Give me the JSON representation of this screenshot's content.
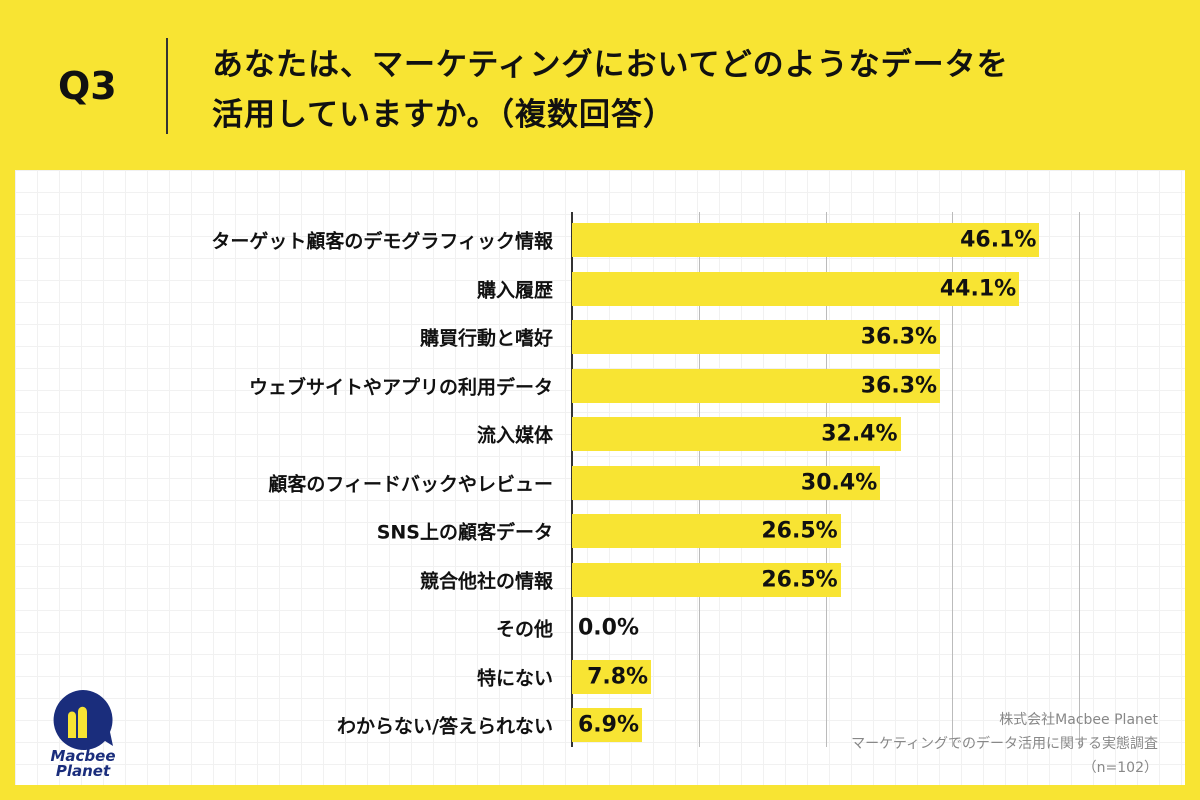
{
  "header": {
    "question": "Q3",
    "title_line1": "あなたは、マーケティングにおいてどのようなデータを",
    "title_line2": "活用していますか。（複数回答）"
  },
  "chart_data": {
    "type": "bar",
    "orientation": "horizontal",
    "categories": [
      "ターゲット顧客のデモグラフィック情報",
      "購入履歴",
      "購買行動と嗜好",
      "ウェブサイトやアプリの利用データ",
      "流入媒体",
      "顧客のフィードバックやレビュー",
      "SNS上の顧客データ",
      "競合他社の情報",
      "その他",
      "特にない",
      "わからない/答えられない"
    ],
    "values": [
      46.1,
      44.1,
      36.3,
      36.3,
      32.4,
      30.4,
      26.5,
      26.5,
      0.0,
      7.8,
      6.9
    ],
    "value_labels": [
      "46.1%",
      "44.1%",
      "36.3%",
      "36.3%",
      "32.4%",
      "30.4%",
      "26.5%",
      "26.5%",
      "0.0%",
      "7.8%",
      "6.9%"
    ],
    "xlim": [
      0,
      50
    ],
    "grid": true,
    "bar_color": "#f8e433"
  },
  "footer": {
    "company": "株式会社Macbee Planet",
    "survey": "マーケティングでのデータ活用に関する実態調査",
    "sample": "（n=102）"
  },
  "logo": {
    "text1": "Macbee",
    "text2": "Planet",
    "color": "#1a2d7c"
  }
}
